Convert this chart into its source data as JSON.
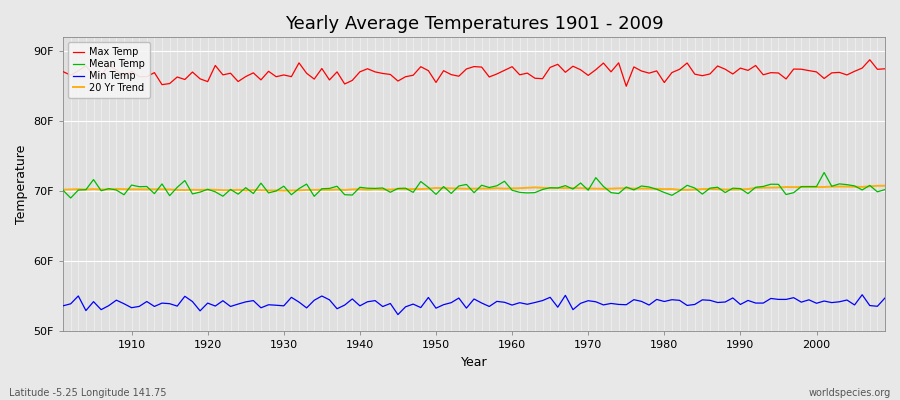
{
  "title": "Yearly Average Temperatures 1901 - 2009",
  "xlabel": "Year",
  "ylabel": "Temperature",
  "year_start": 1901,
  "year_end": 2009,
  "ylim": [
    50,
    92
  ],
  "yticks": [
    50,
    60,
    70,
    80,
    90
  ],
  "ytick_labels": [
    "50F",
    "60F",
    "70F",
    "80F",
    "90F"
  ],
  "xticks": [
    1910,
    1920,
    1930,
    1940,
    1950,
    1960,
    1970,
    1980,
    1990,
    2000
  ],
  "max_temp_mean": 87.0,
  "max_temp_std": 0.8,
  "mean_temp_mean": 70.3,
  "mean_temp_std": 0.6,
  "min_temp_mean": 54.0,
  "min_temp_std": 0.5,
  "colors": {
    "max": "#ff0000",
    "mean": "#00bb00",
    "min": "#0000ff",
    "trend": "#ffaa00",
    "background": "#e8e8e8",
    "plot_bg": "#e0e0e0",
    "grid": "#ffffff"
  },
  "legend_labels": [
    "Max Temp",
    "Mean Temp",
    "Min Temp",
    "20 Yr Trend"
  ],
  "footer_left": "Latitude -5.25 Longitude 141.75",
  "footer_right": "worldspecies.org",
  "seed": 42
}
